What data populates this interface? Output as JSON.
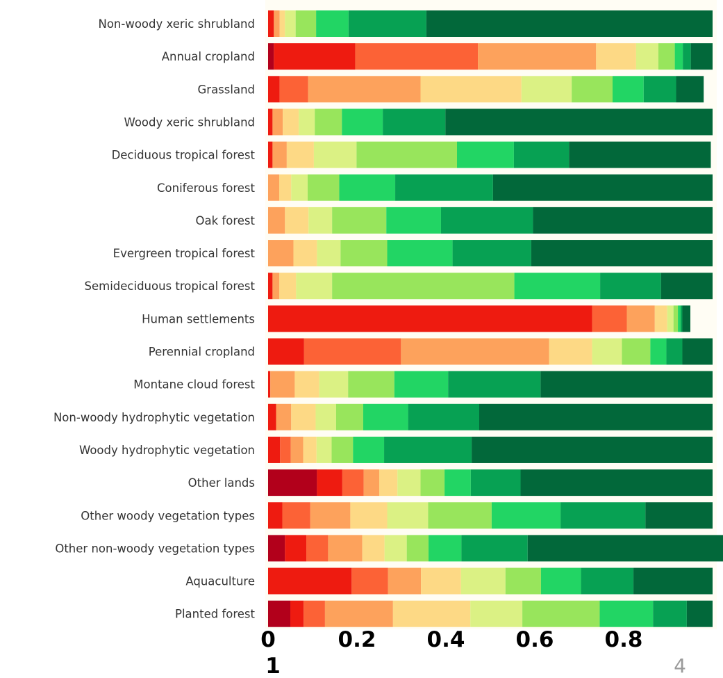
{
  "chart_data": {
    "type": "bar",
    "orientation": "horizontal",
    "stacked": true,
    "normalized": true,
    "categories": [
      "Non-woody xeric shrubland",
      "Annual cropland",
      "Grassland",
      "Woody xeric shrubland",
      "Deciduous tropical forest",
      "Coniferous forest",
      "Oak forest",
      "Evergreen tropical forest",
      "Semideciduous tropical forest",
      "Human settlements",
      "Perennial cropland",
      "Montane cloud forest",
      "Non-woody hydrophytic vegetation",
      "Woody hydrophytic vegetation",
      "Other lands",
      "Other woody vegetation types",
      "Other non-woody vegetation types",
      "Aquaculture",
      "Planted forest"
    ],
    "colors": [
      "#b2001b",
      "#ee1b10",
      "#fc6236",
      "#fda25c",
      "#fdd985",
      "#dbf184",
      "#98e55c",
      "#22d564",
      "#07a153",
      "#02683a"
    ],
    "series": [
      {
        "values": [
          0.0,
          0.013,
          0.0,
          0.0,
          0.0,
          0.0,
          0.0,
          0.0,
          0.0,
          0.0,
          0.0,
          0.0,
          0.0,
          0.0,
          0.11,
          0.0,
          0.038,
          0.0,
          0.05
        ]
      },
      {
        "values": [
          0.013,
          0.183,
          0.026,
          0.01,
          0.01,
          0.0,
          0.0,
          0.0,
          0.01,
          0.729,
          0.081,
          0.005,
          0.018,
          0.027,
          0.057,
          0.032,
          0.048,
          0.188,
          0.03
        ]
      },
      {
        "values": [
          0.0,
          0.276,
          0.064,
          0.0,
          0.0,
          0.0,
          0.0,
          0.0,
          0.0,
          0.078,
          0.218,
          0.0,
          0.0,
          0.024,
          0.048,
          0.063,
          0.049,
          0.082,
          0.048
        ]
      },
      {
        "values": [
          0.013,
          0.266,
          0.253,
          0.023,
          0.032,
          0.025,
          0.038,
          0.057,
          0.015,
          0.063,
          0.333,
          0.055,
          0.034,
          0.028,
          0.035,
          0.09,
          0.077,
          0.074,
          0.153
        ]
      },
      {
        "values": [
          0.012,
          0.09,
          0.227,
          0.036,
          0.061,
          0.027,
          0.053,
          0.053,
          0.038,
          0.028,
          0.097,
          0.055,
          0.055,
          0.03,
          0.041,
          0.083,
          0.05,
          0.09,
          0.174
        ]
      },
      {
        "values": [
          0.024,
          0.05,
          0.113,
          0.036,
          0.096,
          0.037,
          0.053,
          0.053,
          0.081,
          0.014,
          0.067,
          0.065,
          0.046,
          0.034,
          0.052,
          0.092,
          0.05,
          0.1,
          0.117
        ]
      },
      {
        "values": [
          0.046,
          0.037,
          0.092,
          0.061,
          0.226,
          0.071,
          0.122,
          0.105,
          0.41,
          0.01,
          0.064,
          0.104,
          0.061,
          0.048,
          0.054,
          0.143,
          0.049,
          0.08,
          0.174
        ]
      },
      {
        "values": [
          0.073,
          0.018,
          0.07,
          0.092,
          0.128,
          0.126,
          0.123,
          0.147,
          0.193,
          0.006,
          0.036,
          0.121,
          0.101,
          0.07,
          0.059,
          0.155,
          0.074,
          0.09,
          0.12
        ]
      },
      {
        "values": [
          0.175,
          0.018,
          0.073,
          0.141,
          0.124,
          0.22,
          0.207,
          0.177,
          0.137,
          0.004,
          0.036,
          0.208,
          0.16,
          0.197,
          0.112,
          0.191,
          0.149,
          0.118,
          0.076
        ]
      },
      {
        "values": [
          0.644,
          0.049,
          0.062,
          0.601,
          0.319,
          0.494,
          0.404,
          0.408,
          0.116,
          0.018,
          0.068,
          0.387,
          0.525,
          0.542,
          0.432,
          0.151,
          0.465,
          0.178,
          0.058
        ]
      }
    ],
    "xaxis": {
      "ticks": [
        0,
        0.2,
        0.4,
        0.6,
        0.8
      ],
      "tick_labels": [
        "0",
        "0.2",
        "0.4",
        "0.6",
        "0.8"
      ],
      "extra_label": "1",
      "range": [
        0,
        1
      ]
    },
    "corner_text": "4",
    "xlabel": "",
    "ylabel": "",
    "title": "",
    "grid": false,
    "legend": "none"
  }
}
